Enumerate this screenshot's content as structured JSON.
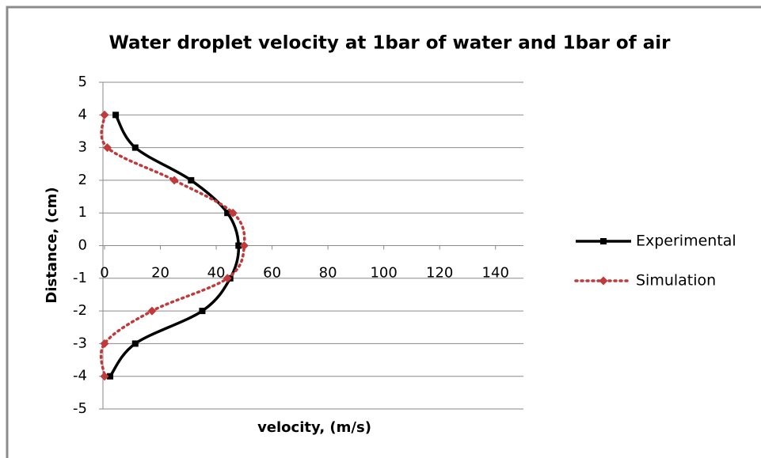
{
  "chart_data": {
    "type": "scatter",
    "title": "Water droplet velocity at 1bar of water and 1bar of air",
    "x_label": "velocity, (m/s)",
    "y_label": "Distance, (cm)",
    "xlim": [
      0,
      150
    ],
    "xticks": [
      0,
      20,
      40,
      60,
      80,
      100,
      120,
      140
    ],
    "ylim": [
      -5,
      5
    ],
    "yticks": [
      -5,
      -4,
      -3,
      -2,
      -1,
      0,
      1,
      2,
      3,
      4,
      5
    ],
    "grid": true,
    "legend": "right",
    "series": [
      {
        "name": "Experimental",
        "color": "#000000",
        "line": "solid",
        "marker": "square",
        "x": [
          4,
          11,
          31,
          44,
          48,
          45,
          35,
          11,
          2
        ],
        "y": [
          4,
          3,
          2,
          1,
          0,
          -1,
          -2,
          -3,
          -4
        ]
      },
      {
        "name": "Simulation",
        "color": "#c0393b",
        "line": "dotted",
        "marker": "diamond",
        "x": [
          0,
          1,
          25,
          46,
          50,
          44,
          17,
          0,
          0
        ],
        "y": [
          4,
          3,
          2,
          1,
          0,
          -1,
          -2,
          -3,
          -4
        ]
      }
    ]
  }
}
